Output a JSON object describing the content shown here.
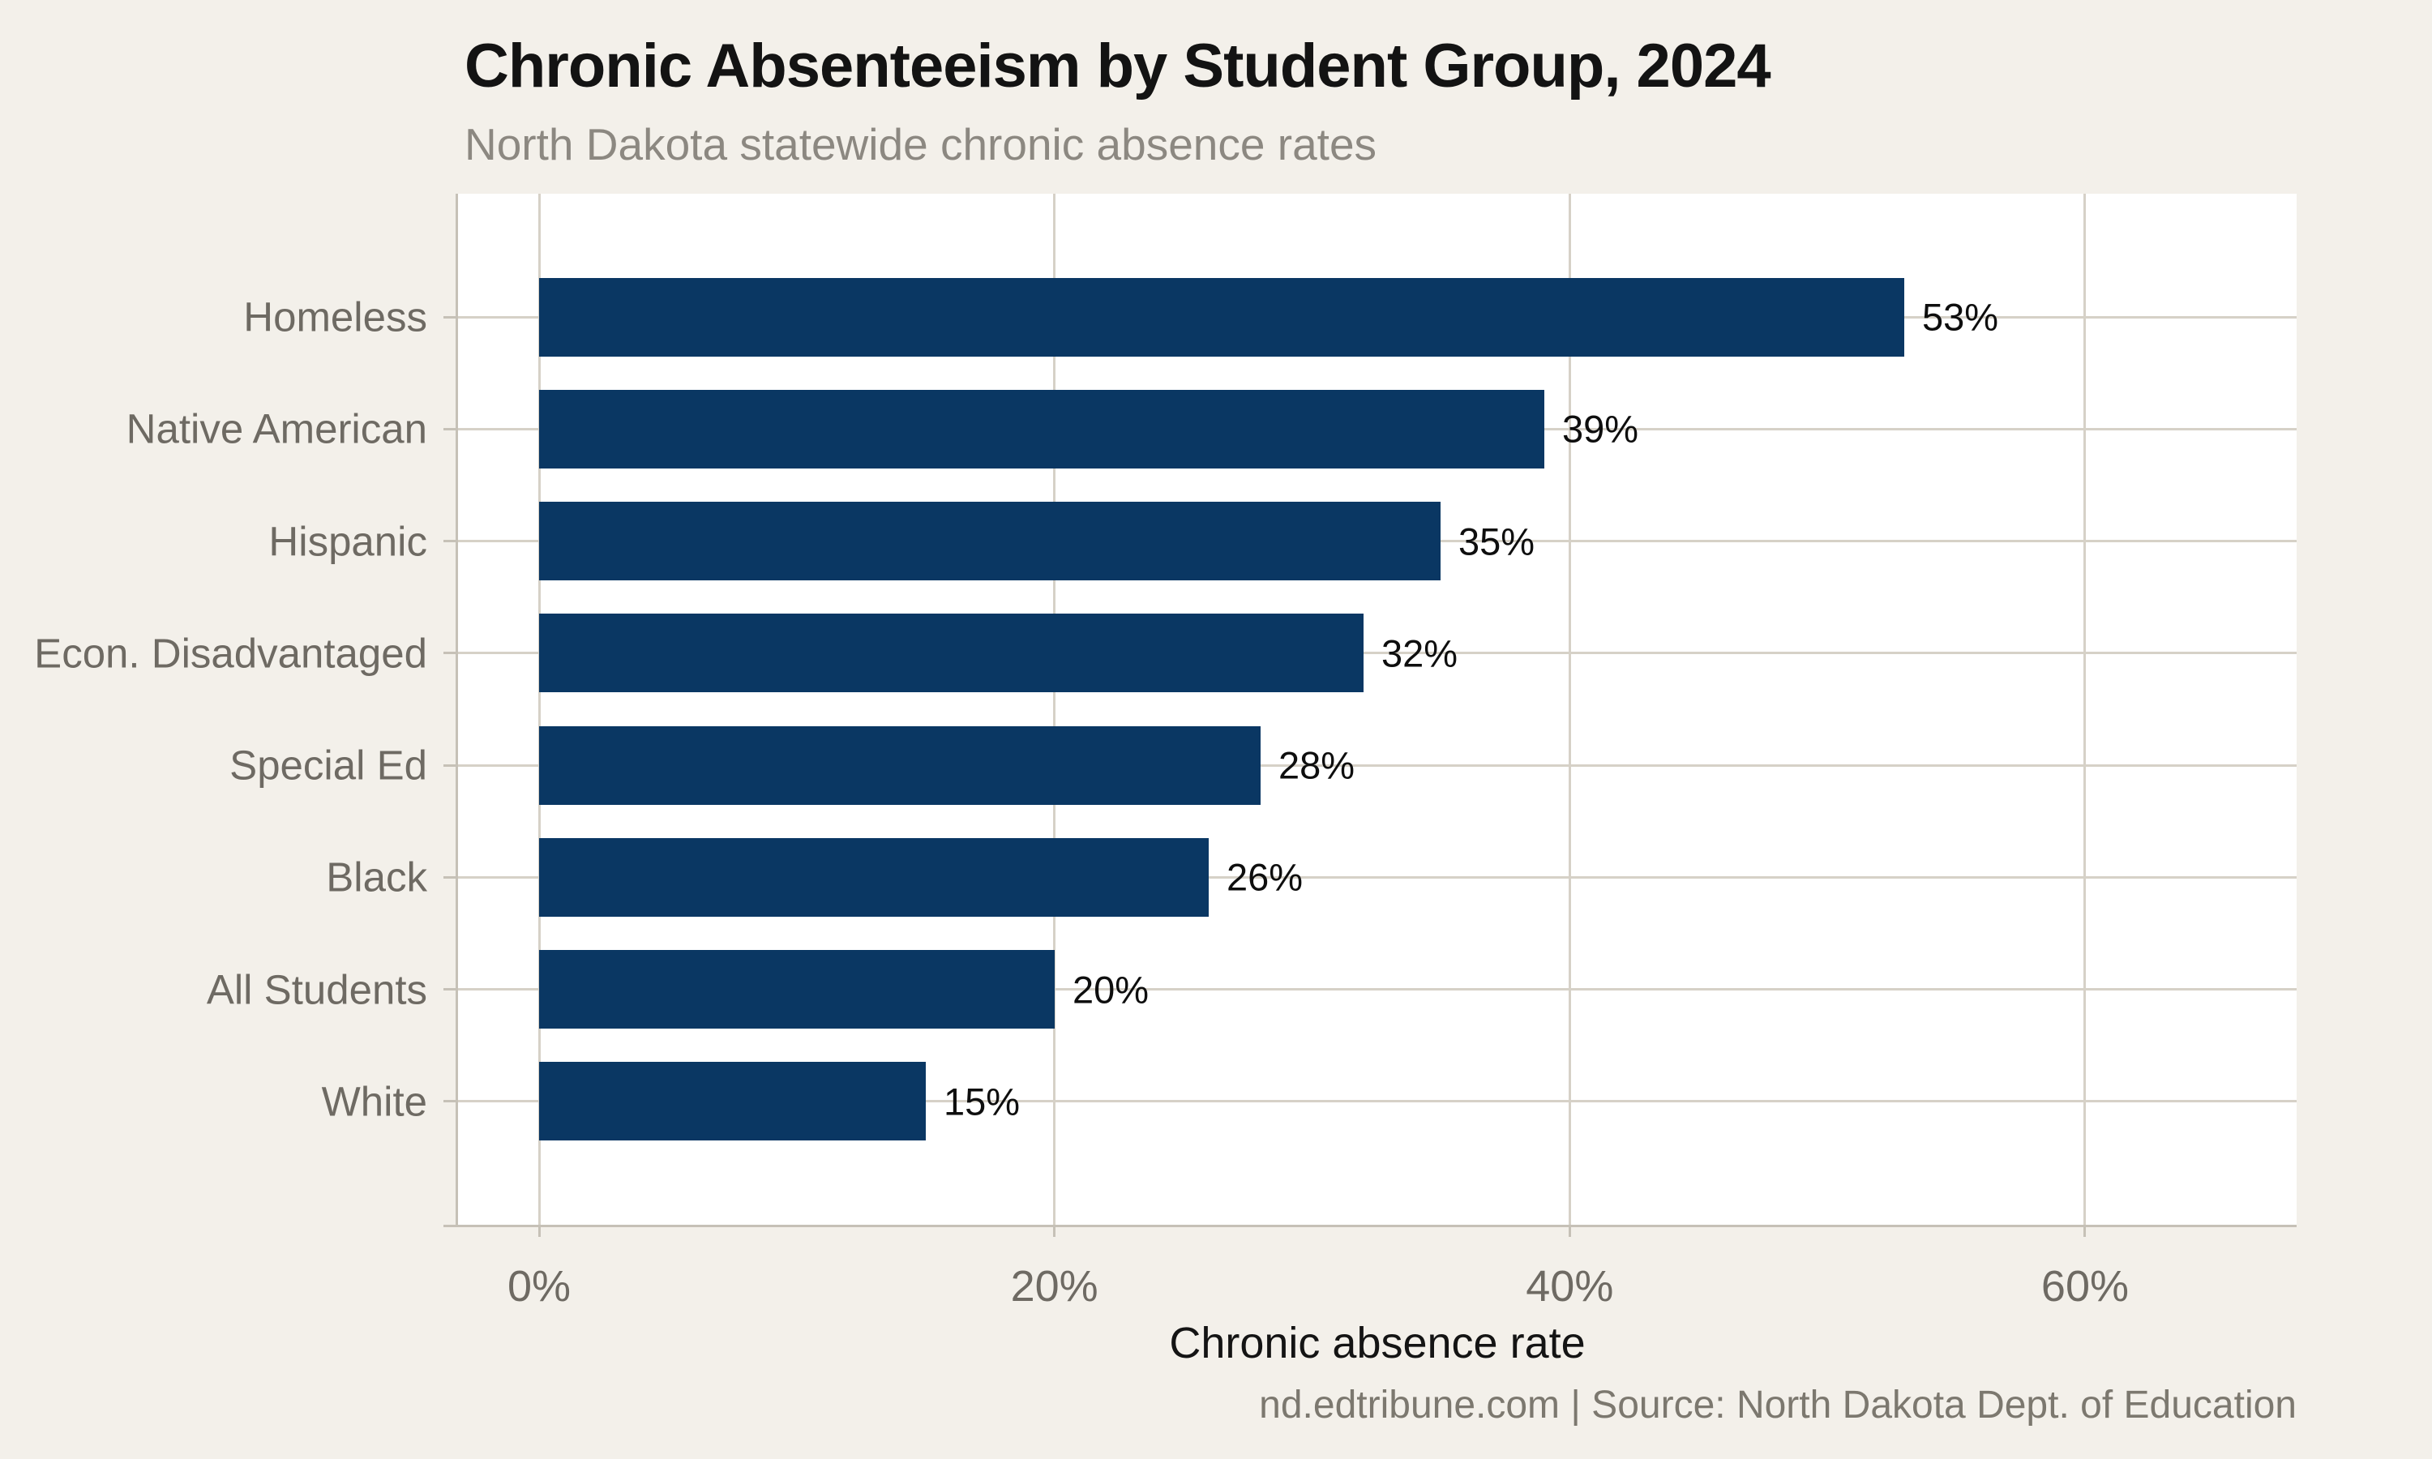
{
  "chart_data": {
    "type": "bar",
    "orientation": "horizontal",
    "title": "Chronic Absenteeism by Student Group, 2024",
    "subtitle": "North Dakota statewide chronic absence rates",
    "xlabel": "Chronic absence rate",
    "caption": "nd.edtribune.com | Source: North Dakota Dept. of Education",
    "categories": [
      "Homeless",
      "Native American",
      "Hispanic",
      "Econ. Disadvantaged",
      "Special Ed",
      "Black",
      "All Students",
      "White"
    ],
    "values": [
      53,
      39,
      35,
      32,
      28,
      26,
      20,
      15
    ],
    "value_labels": [
      "53%",
      "39%",
      "35%",
      "32%",
      "28%",
      "26%",
      "20%",
      "15%"
    ],
    "x_ticks": [
      {
        "value": 0,
        "label": "0%"
      },
      {
        "value": 20,
        "label": "20%"
      },
      {
        "value": 40,
        "label": "40%"
      },
      {
        "value": 60,
        "label": "60%"
      }
    ],
    "xlim": [
      0,
      68
    ],
    "grid": true,
    "legend": false,
    "colors": {
      "bg": "#F3F0EA",
      "panel": "#FFFFFF",
      "bar": "#0A3763",
      "grid": "#D6D1C7",
      "axis": "#C6C1B7",
      "title": "#131313",
      "subtitle": "#8C8881",
      "axis-text": "#6E6A63",
      "value-text": "#0E0E0E",
      "xtitle-text": "#141414",
      "caption-text": "#7C786F"
    }
  }
}
